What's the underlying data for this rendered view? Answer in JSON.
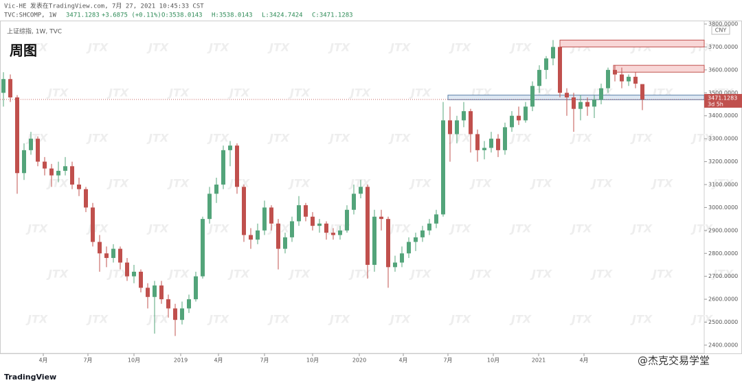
{
  "chart_data": {
    "type": "candlestick",
    "header": {
      "author_line": "Vic-HE 发表在TradingView.com, 7月 27, 2021 10:45:33 CST",
      "symbol": "TVC:SHCOMP, 1W",
      "last": "3471.1283",
      "change": "+3.6875 (+0.11%)",
      "open": "O:3538.0143",
      "high": "H:3538.0143",
      "low": "L:3424.7424",
      "close": "C:3471.1283"
    },
    "pane_label": "上证综指, 1W, TVC",
    "title": "周图",
    "currency": "CNY",
    "countdown": "3d 5h",
    "watermark": "JTX",
    "brand": "TradingView",
    "signature": "@杰克交易学堂",
    "ylim": [
      2364,
      3815
    ],
    "yticks": [
      {
        "value": 2400,
        "label": "2400.0000"
      },
      {
        "value": 2500,
        "label": "2500.0000"
      },
      {
        "value": 2600,
        "label": "2600.0000"
      },
      {
        "value": 2700,
        "label": "2700.0000"
      },
      {
        "value": 2800,
        "label": "2800.0000"
      },
      {
        "value": 2900,
        "label": "2900.0000"
      },
      {
        "value": 3000,
        "label": "3000.0000"
      },
      {
        "value": 3100,
        "label": "3100.0000"
      },
      {
        "value": 3200,
        "label": "3200.0000"
      },
      {
        "value": 3300,
        "label": "3300.0000"
      },
      {
        "value": 3400,
        "label": "3400.0000"
      },
      {
        "value": 3500,
        "label": "3500.0000"
      },
      {
        "value": 3600,
        "label": "3600.0000"
      },
      {
        "value": 3700,
        "label": "3700.0000"
      },
      {
        "value": 3800,
        "label": "3800.0000"
      }
    ],
    "xticks": [
      {
        "value": 5.8,
        "label": "4月"
      },
      {
        "value": 12.3,
        "label": "7月"
      },
      {
        "value": 19,
        "label": "10月"
      },
      {
        "value": 25.8,
        "label": "2019"
      },
      {
        "value": 31.3,
        "label": "4月"
      },
      {
        "value": 38,
        "label": "7月"
      },
      {
        "value": 45,
        "label": "10月"
      },
      {
        "value": 51.8,
        "label": "2020"
      },
      {
        "value": 58.2,
        "label": "4月"
      },
      {
        "value": 64.7,
        "label": "7月"
      },
      {
        "value": 71.3,
        "label": "10月"
      },
      {
        "value": 77.9,
        "label": "2021"
      },
      {
        "value": 84.5,
        "label": "4月"
      }
    ],
    "up_color": "#53a47a",
    "down_color": "#c0504d",
    "last_price": 3471.1283,
    "zones": [
      {
        "low": 3700,
        "high": 3730,
        "start": 81,
        "color": "#f8d7d7"
      },
      {
        "low": 3590,
        "high": 3620,
        "start": 88.8,
        "color": "#f8d7d7"
      },
      {
        "low": 3470,
        "high": 3490,
        "start": 64.7,
        "color": "#dde8f3"
      }
    ],
    "ohlc": [
      [
        3500,
        3590,
        3440,
        3560
      ],
      [
        3560,
        3580,
        3460,
        3480
      ],
      [
        3480,
        3490,
        3060,
        3150
      ],
      [
        3150,
        3280,
        3120,
        3250
      ],
      [
        3250,
        3330,
        3230,
        3300
      ],
      [
        3300,
        3310,
        3180,
        3200
      ],
      [
        3200,
        3220,
        3140,
        3170
      ],
      [
        3170,
        3190,
        3090,
        3140
      ],
      [
        3140,
        3200,
        3110,
        3160
      ],
      [
        3160,
        3220,
        3140,
        3180
      ],
      [
        3180,
        3200,
        3080,
        3100
      ],
      [
        3100,
        3130,
        3050,
        3080
      ],
      [
        3080,
        3090,
        2980,
        3000
      ],
      [
        3000,
        3020,
        2830,
        2850
      ],
      [
        2850,
        2880,
        2720,
        2800
      ],
      [
        2800,
        2830,
        2740,
        2780
      ],
      [
        2780,
        2840,
        2760,
        2820
      ],
      [
        2820,
        2830,
        2730,
        2760
      ],
      [
        2760,
        2780,
        2680,
        2700
      ],
      [
        2700,
        2750,
        2670,
        2720
      ],
      [
        2720,
        2730,
        2630,
        2650
      ],
      [
        2650,
        2670,
        2560,
        2610
      ],
      [
        2610,
        2680,
        2450,
        2660
      ],
      [
        2660,
        2680,
        2580,
        2600
      ],
      [
        2600,
        2620,
        2520,
        2560
      ],
      [
        2560,
        2580,
        2440,
        2510
      ],
      [
        2510,
        2590,
        2490,
        2560
      ],
      [
        2560,
        2620,
        2540,
        2600
      ],
      [
        2600,
        2720,
        2590,
        2700
      ],
      [
        2700,
        2960,
        2690,
        2950
      ],
      [
        2950,
        3090,
        2930,
        3060
      ],
      [
        3060,
        3130,
        3020,
        3100
      ],
      [
        3100,
        3270,
        3080,
        3250
      ],
      [
        3250,
        3290,
        3180,
        3270
      ],
      [
        3270,
        3280,
        3060,
        3090
      ],
      [
        3090,
        3100,
        2850,
        2880
      ],
      [
        2880,
        2910,
        2820,
        2860
      ],
      [
        2860,
        2930,
        2840,
        2900
      ],
      [
        2900,
        3030,
        2880,
        3000
      ],
      [
        3000,
        3010,
        2900,
        2930
      ],
      [
        2930,
        2950,
        2730,
        2820
      ],
      [
        2820,
        2890,
        2800,
        2870
      ],
      [
        2870,
        2960,
        2850,
        2940
      ],
      [
        2940,
        3050,
        2920,
        3010
      ],
      [
        3010,
        3020,
        2940,
        2960
      ],
      [
        2960,
        2980,
        2900,
        2920
      ],
      [
        2920,
        2950,
        2890,
        2930
      ],
      [
        2930,
        2940,
        2860,
        2890
      ],
      [
        2890,
        2910,
        2860,
        2880
      ],
      [
        2880,
        2920,
        2860,
        2900
      ],
      [
        2900,
        3010,
        2890,
        2990
      ],
      [
        2990,
        3100,
        2970,
        3060
      ],
      [
        3060,
        3120,
        3040,
        3090
      ],
      [
        3090,
        3100,
        2690,
        2750
      ],
      [
        2750,
        2990,
        2720,
        2960
      ],
      [
        2960,
        2990,
        2900,
        2950
      ],
      [
        2950,
        2960,
        2650,
        2740
      ],
      [
        2740,
        2790,
        2720,
        2760
      ],
      [
        2760,
        2830,
        2740,
        2800
      ],
      [
        2800,
        2870,
        2780,
        2850
      ],
      [
        2850,
        2890,
        2810,
        2870
      ],
      [
        2870,
        2920,
        2850,
        2900
      ],
      [
        2900,
        2950,
        2880,
        2930
      ],
      [
        2930,
        2990,
        2910,
        2970
      ],
      [
        2970,
        3460,
        2960,
        3380
      ],
      [
        3380,
        3440,
        3200,
        3320
      ],
      [
        3320,
        3400,
        3280,
        3380
      ],
      [
        3380,
        3460,
        3350,
        3420
      ],
      [
        3420,
        3430,
        3240,
        3320
      ],
      [
        3320,
        3340,
        3200,
        3250
      ],
      [
        3250,
        3290,
        3210,
        3260
      ],
      [
        3260,
        3330,
        3240,
        3300
      ],
      [
        3300,
        3320,
        3220,
        3250
      ],
      [
        3250,
        3370,
        3230,
        3350
      ],
      [
        3350,
        3420,
        3330,
        3400
      ],
      [
        3400,
        3440,
        3360,
        3380
      ],
      [
        3380,
        3460,
        3370,
        3440
      ],
      [
        3440,
        3550,
        3420,
        3530
      ],
      [
        3530,
        3620,
        3500,
        3600
      ],
      [
        3600,
        3660,
        3560,
        3650
      ],
      [
        3650,
        3730,
        3620,
        3700
      ],
      [
        3700,
        3720,
        3480,
        3500
      ],
      [
        3500,
        3520,
        3400,
        3480
      ],
      [
        3480,
        3500,
        3330,
        3430
      ],
      [
        3430,
        3490,
        3380,
        3460
      ],
      [
        3460,
        3480,
        3400,
        3440
      ],
      [
        3440,
        3490,
        3390,
        3470
      ],
      [
        3470,
        3540,
        3450,
        3520
      ],
      [
        3520,
        3610,
        3500,
        3600
      ],
      [
        3600,
        3620,
        3550,
        3580
      ],
      [
        3580,
        3610,
        3520,
        3550
      ],
      [
        3550,
        3580,
        3530,
        3570
      ],
      [
        3570,
        3590,
        3520,
        3540
      ],
      [
        3538.0143,
        3538.0143,
        3424.7424,
        3471.1283
      ]
    ]
  }
}
